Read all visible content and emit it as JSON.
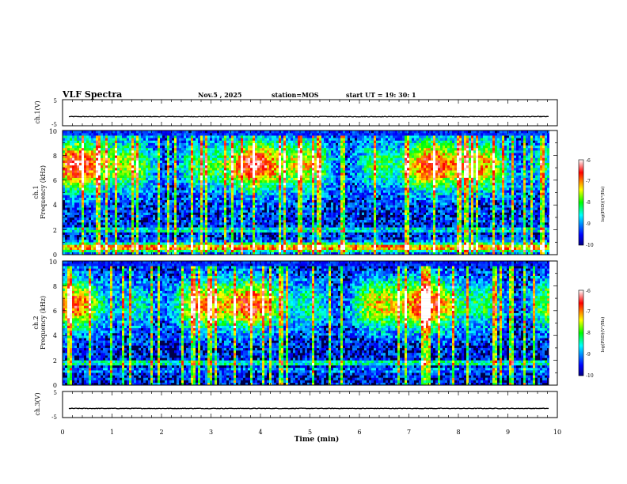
{
  "header": {
    "title": "VLF Spectra",
    "date": "Nov.5 , 2025",
    "station": "station=MOS",
    "start_ut": "start UT =  19: 30: 1"
  },
  "chart_data": [
    {
      "type": "line",
      "name": "ch1-waveform",
      "ylabel": "ch.1(V)",
      "yticks": [
        "5",
        "-5"
      ],
      "ylim": [
        -5,
        5
      ],
      "baseline_v": -1.5,
      "xlim": [
        0,
        10
      ]
    },
    {
      "type": "heatmap",
      "name": "ch1-spectrogram",
      "ylabel_line1": "ch.1",
      "ylabel_line2": "Frequency (kHz)",
      "ylim": [
        0,
        10
      ],
      "yticks": [
        "0",
        "2",
        "4",
        "6",
        "8",
        "10"
      ],
      "xlim": [
        0,
        9.83
      ],
      "colorbar": {
        "label": "log(PSD)(V²/Hz)",
        "range": [
          -10,
          -6
        ],
        "ticks": [
          "-6",
          "-7",
          "-8",
          "-9",
          "-10"
        ]
      }
    },
    {
      "type": "heatmap",
      "name": "ch2-spectrogram",
      "ylabel_line1": "ch.2",
      "ylabel_line2": "Frequency (kHz)",
      "ylim": [
        0,
        10
      ],
      "yticks": [
        "0",
        "2",
        "4",
        "6",
        "8",
        "10"
      ],
      "xlim": [
        0,
        9.83
      ],
      "colorbar": {
        "label": "log(PSD)(V²/Hz)",
        "range": [
          -10,
          -6
        ],
        "ticks": [
          "-6",
          "-7",
          "-8",
          "-9",
          "-10"
        ]
      }
    },
    {
      "type": "line",
      "name": "ch3-waveform",
      "ylabel": "ch.3(V)",
      "yticks": [
        "5",
        "-5"
      ],
      "ylim": [
        -5,
        5
      ],
      "baseline_v": -1.5,
      "xlim": [
        0,
        10
      ]
    }
  ],
  "xaxis": {
    "label": "Time  (min)",
    "ticks": [
      "0",
      "1",
      "2",
      "3",
      "4",
      "5",
      "6",
      "7",
      "8",
      "9",
      "10"
    ],
    "range": [
      0,
      10
    ]
  }
}
